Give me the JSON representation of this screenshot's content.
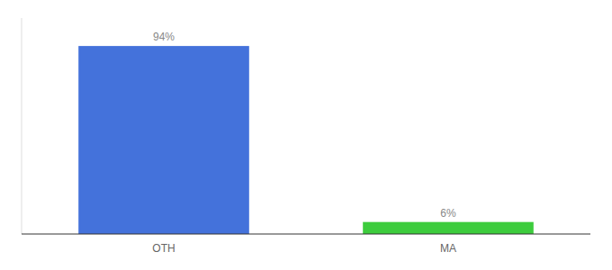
{
  "chart_data": {
    "type": "bar",
    "categories": [
      "OTH",
      "MA"
    ],
    "values": [
      94,
      6
    ],
    "value_labels": [
      "94%",
      "6%"
    ],
    "colors": [
      "#4472db",
      "#3dcc3d"
    ],
    "ylim": [
      0,
      108
    ],
    "data_labels": true,
    "tick_labels": "x"
  }
}
